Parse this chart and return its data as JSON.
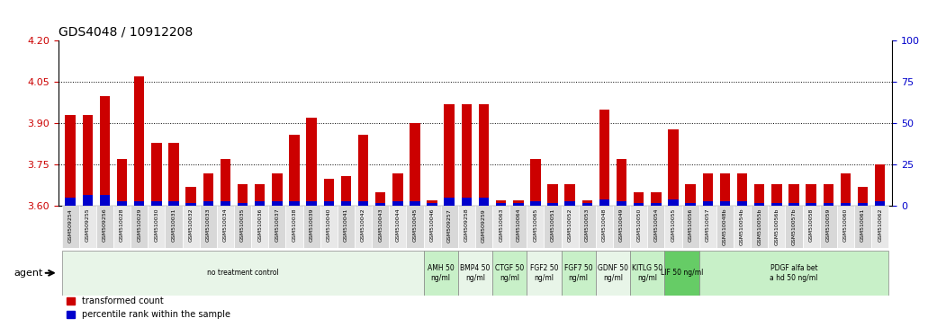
{
  "title": "GDS4048 / 10912208",
  "ylim_left": [
    3.6,
    4.2
  ],
  "ylim_right": [
    0,
    100
  ],
  "yticks_left": [
    3.6,
    3.75,
    3.9,
    4.05,
    4.2
  ],
  "yticks_right": [
    0,
    25,
    50,
    75,
    100
  ],
  "bar_color_red": "#cc0000",
  "bar_color_blue": "#0000cc",
  "samples": [
    "GSM509254",
    "GSM509255",
    "GSM509256",
    "GSM510028",
    "GSM510029",
    "GSM510030",
    "GSM510031",
    "GSM510032",
    "GSM510033",
    "GSM510034",
    "GSM510035",
    "GSM510036",
    "GSM510037",
    "GSM510038",
    "GSM510039",
    "GSM510040",
    "GSM510041",
    "GSM510042",
    "GSM510043",
    "GSM510044",
    "GSM510045",
    "GSM510046",
    "GSM509257",
    "GSM509258",
    "GSM509259",
    "GSM510063",
    "GSM510064",
    "GSM510065",
    "GSM510051",
    "GSM510052",
    "GSM510053",
    "GSM510048",
    "GSM510049",
    "GSM510050",
    "GSM510054",
    "GSM510055",
    "GSM510056",
    "GSM510057",
    "GSM510048b",
    "GSM510054b",
    "GSM510055b",
    "GSM510056b",
    "GSM510057b",
    "GSM510058",
    "GSM510059",
    "GSM510060",
    "GSM510061",
    "GSM510062"
  ],
  "red_values": [
    3.93,
    3.93,
    4.0,
    3.77,
    4.07,
    3.83,
    3.83,
    3.67,
    3.72,
    3.77,
    3.68,
    3.68,
    3.72,
    3.86,
    3.92,
    3.7,
    3.71,
    3.86,
    3.65,
    3.72,
    3.9,
    3.62,
    3.97,
    3.97,
    3.97,
    3.62,
    3.62,
    3.77,
    3.68,
    3.68,
    3.62,
    3.95,
    3.77,
    3.65,
    3.65,
    3.88,
    3.68,
    3.72,
    3.72,
    3.72,
    3.68,
    3.68,
    3.68,
    3.68,
    3.68,
    3.72,
    3.67,
    3.75
  ],
  "blue_values": [
    5,
    7,
    7,
    3,
    3,
    3,
    3,
    2,
    3,
    3,
    2,
    3,
    3,
    3,
    3,
    3,
    3,
    3,
    2,
    3,
    3,
    2,
    5,
    5,
    5,
    2,
    2,
    3,
    2,
    3,
    2,
    4,
    3,
    2,
    2,
    4,
    2,
    3,
    3,
    3,
    2,
    2,
    2,
    2,
    2,
    2,
    2,
    3
  ],
  "agents": [
    {
      "label": "no treatment control",
      "start": 0,
      "end": 21,
      "color": "#e8f5e8"
    },
    {
      "label": "AMH 50\nng/ml",
      "start": 21,
      "end": 23,
      "color": "#c8f0c8"
    },
    {
      "label": "BMP4 50\nng/ml",
      "start": 23,
      "end": 25,
      "color": "#e8f5e8"
    },
    {
      "label": "CTGF 50\nng/ml",
      "start": 25,
      "end": 27,
      "color": "#c8f0c8"
    },
    {
      "label": "FGF2 50\nng/ml",
      "start": 27,
      "end": 29,
      "color": "#e8f5e8"
    },
    {
      "label": "FGF7 50\nng/ml",
      "start": 29,
      "end": 31,
      "color": "#c8f0c8"
    },
    {
      "label": "GDNF 50\nng/ml",
      "start": 31,
      "end": 33,
      "color": "#e8f5e8"
    },
    {
      "label": "KITLG 50\nng/ml",
      "start": 33,
      "end": 35,
      "color": "#c8f0c8"
    },
    {
      "label": "LIF 50 ng/ml",
      "start": 35,
      "end": 37,
      "color": "#66cc66"
    },
    {
      "label": "PDGF alfa bet\na hd 50 ng/ml",
      "start": 37,
      "end": 48,
      "color": "#c8f0c8"
    }
  ],
  "legend_red": "transformed count",
  "legend_blue": "percentile rank within the sample",
  "agent_label": "agent",
  "bg_color": "#ffffff",
  "plot_bg": "#ffffff",
  "grid_color": "#000000",
  "tick_color_left": "#cc0000",
  "tick_color_right": "#0000cc"
}
